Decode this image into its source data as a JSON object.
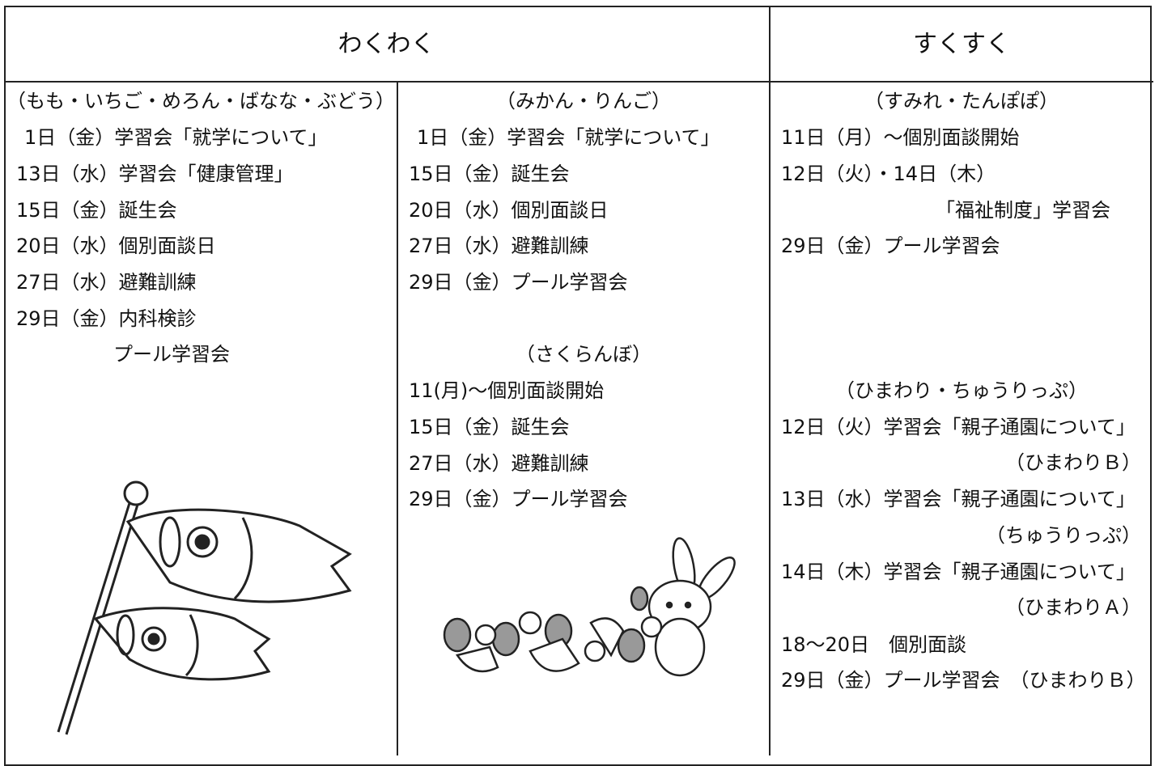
{
  "header": {
    "left": "わくわく",
    "right": "すくすく"
  },
  "columns": [
    {
      "groups": [
        {
          "title": "（もも・いちご・めろん・ばなな・ぶどう）",
          "lines": [
            "1日（金）学習会「就学について」",
            "13日（水）学習会「健康管理」",
            "15日（金）誕生会",
            "20日（水）個別面談日",
            "27日（水）避難訓練",
            "29日（金）内科検診",
            "プール学習会"
          ]
        }
      ]
    },
    {
      "groups": [
        {
          "title": "（みかん・りんご）",
          "lines": [
            "1日（金）学習会「就学について」",
            "15日（金）誕生会",
            "20日（水）個別面談日",
            "27日（水）避難訓練",
            "29日（金）プール学習会"
          ]
        },
        {
          "title": "（さくらんぼ）",
          "lines": [
            "11(月)～個別面談開始",
            "15日（金）誕生会",
            "27日（水）避難訓練",
            "29日（金）プール学習会"
          ]
        }
      ]
    },
    {
      "groups": [
        {
          "title": "（すみれ・たんぽぽ）",
          "lines": [
            "11日（月）～個別面談開始",
            "12日（火）・14日（木）",
            "「福祉制度」学習会",
            "29日（金）プール学習会"
          ]
        },
        {
          "title": "（ひまわり・ちゅうりっぷ）",
          "lines": [
            "12日（火）学習会「親子通園について」",
            "（ひまわりＢ）",
            "13日（水）学習会「親子通園について」",
            "（ちゅうりっぷ）",
            "14日（木）学習会「親子通園について」",
            "（ひまわりＡ）",
            "18～20日　個別面談",
            "29日（金）プール学習会　（ひまわりＢ）"
          ]
        }
      ]
    }
  ]
}
